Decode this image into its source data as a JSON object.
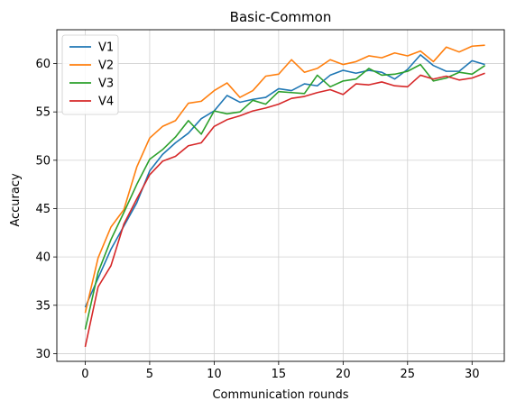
{
  "chart_data": {
    "type": "line",
    "title": "Basic-Common",
    "xlabel": "Communication rounds",
    "ylabel": "Accuracy",
    "xlim": [
      -2.2,
      32.5
    ],
    "ylim": [
      29.2,
      63.5
    ],
    "xticks": [
      0,
      5,
      10,
      15,
      20,
      25,
      30
    ],
    "yticks": [
      30,
      35,
      40,
      45,
      50,
      55,
      60
    ],
    "grid": true,
    "legend_position": "top-left",
    "x": [
      0,
      1,
      2,
      3,
      4,
      5,
      6,
      7,
      8,
      9,
      10,
      11,
      12,
      13,
      14,
      15,
      16,
      17,
      18,
      19,
      20,
      21,
      22,
      23,
      24,
      25,
      26,
      27,
      28,
      29,
      30,
      31
    ],
    "series": [
      {
        "name": "V1",
        "color": "#1f77b4",
        "values": [
          34.8,
          37.8,
          40.8,
          43.2,
          45.6,
          48.9,
          50.6,
          51.8,
          52.8,
          54.3,
          55.1,
          56.7,
          56.0,
          56.3,
          56.5,
          57.4,
          57.2,
          57.9,
          57.7,
          58.8,
          59.3,
          59.0,
          59.3,
          59.1,
          58.4,
          59.4,
          60.9,
          59.8,
          59.2,
          59.2,
          60.3,
          59.9
        ]
      },
      {
        "name": "V2",
        "color": "#ff7f0e",
        "values": [
          34.2,
          39.9,
          43.1,
          44.9,
          49.3,
          52.3,
          53.5,
          54.1,
          55.9,
          56.1,
          57.2,
          58.0,
          56.5,
          57.2,
          58.7,
          58.9,
          60.4,
          59.1,
          59.5,
          60.4,
          59.9,
          60.2,
          60.8,
          60.6,
          61.1,
          60.8,
          61.3,
          60.2,
          61.7,
          61.2,
          61.8,
          61.9
        ]
      },
      {
        "name": "V3",
        "color": "#2ca02c",
        "values": [
          32.5,
          38.4,
          41.8,
          44.6,
          47.5,
          50.1,
          51.1,
          52.4,
          54.1,
          52.7,
          55.1,
          54.8,
          55.0,
          56.2,
          55.8,
          57.1,
          57.0,
          56.9,
          58.8,
          57.6,
          58.2,
          58.4,
          59.5,
          58.8,
          58.9,
          59.2,
          59.9,
          58.2,
          58.5,
          59.1,
          58.9,
          59.8
        ]
      },
      {
        "name": "V4",
        "color": "#d62728",
        "values": [
          30.7,
          36.9,
          39.1,
          43.4,
          46.0,
          48.5,
          49.9,
          50.4,
          51.5,
          51.8,
          53.5,
          54.2,
          54.6,
          55.1,
          55.4,
          55.8,
          56.4,
          56.6,
          57.0,
          57.3,
          56.8,
          57.9,
          57.8,
          58.1,
          57.7,
          57.6,
          58.8,
          58.4,
          58.7,
          58.3,
          58.5,
          59.0
        ]
      }
    ]
  }
}
